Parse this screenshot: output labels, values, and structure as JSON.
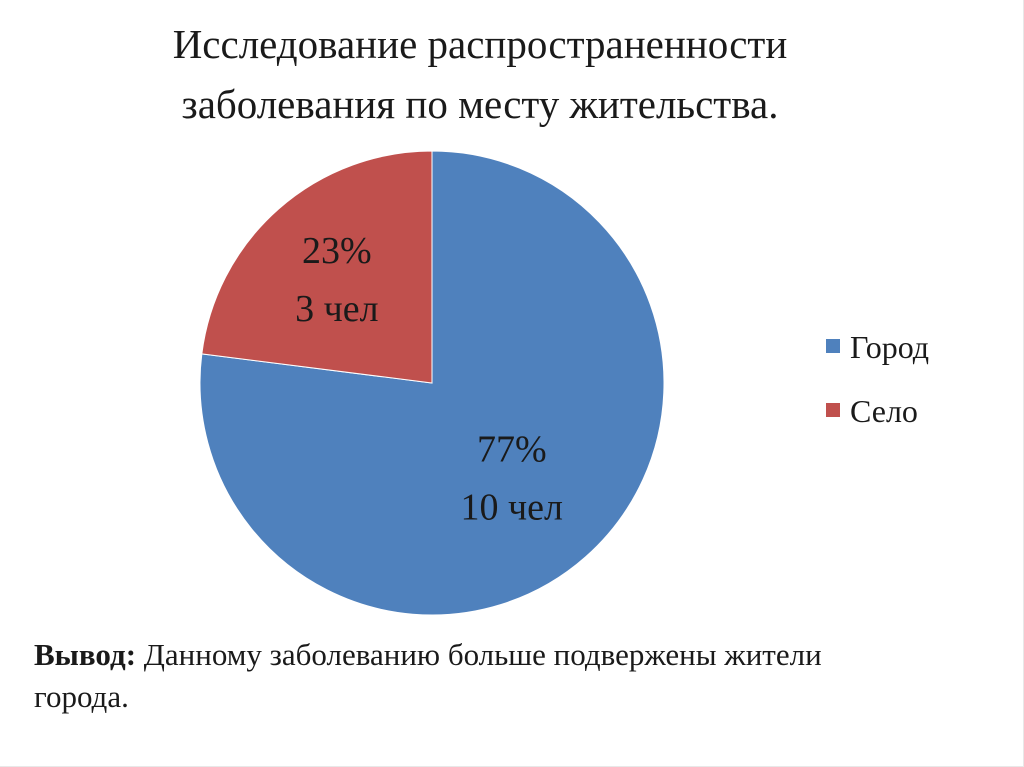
{
  "slide": {
    "title_line1": "Исследование распространенности",
    "title_line2": "заболевания по месту жительства.",
    "conclusion_label": "Вывод:",
    "conclusion_text": " Данному заболеванию больше подвержены жители",
    "conclusion_text_line2": "города."
  },
  "chart_data": {
    "type": "pie",
    "categories": [
      "Город",
      "Село"
    ],
    "values": [
      77,
      23
    ],
    "unit": "%",
    "counts": [
      10,
      3
    ],
    "count_unit": "чел",
    "data_labels": [
      {
        "line1": "77%",
        "line2": "10 чел"
      },
      {
        "line1": "23%",
        "line2": "3 чел"
      }
    ],
    "colors": [
      "#4f81bd",
      "#c0504d"
    ],
    "legend": "right",
    "start_angle": "12 o'clock",
    "direction": "clockwise"
  }
}
